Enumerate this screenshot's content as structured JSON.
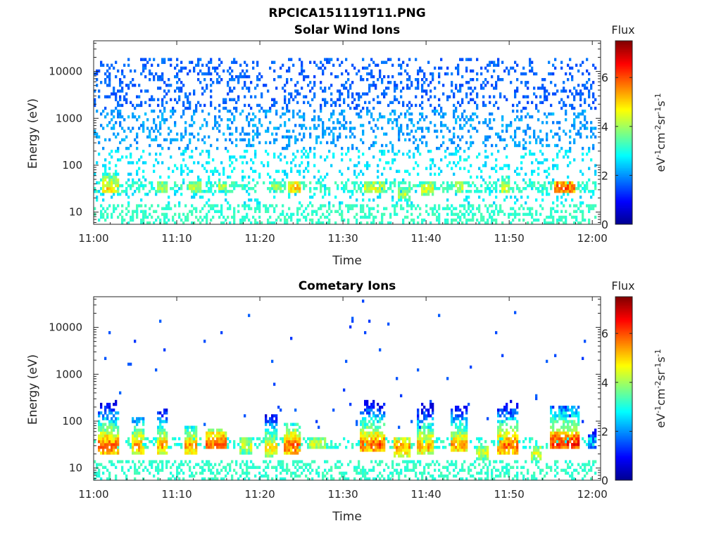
{
  "figure": {
    "title": "RPCICA151119T11.PNG"
  },
  "colormap": [
    "#00008f",
    "#0000ff",
    "#0080ff",
    "#00ffff",
    "#80ff80",
    "#ffff00",
    "#ff8000",
    "#ff0000",
    "#800000"
  ],
  "chart_data": [
    {
      "type": "heatmap",
      "title": "Solar Wind Ions",
      "xlabel": "Time",
      "ylabel": "Energy (eV)",
      "x_ticks": [
        "11:00",
        "11:10",
        "11:20",
        "11:30",
        "11:40",
        "11:50",
        "12:00"
      ],
      "y_ticks": [
        "10",
        "100",
        "1000",
        "10000"
      ],
      "y_scale": "log",
      "ylim": [
        5.5,
        45000
      ],
      "xlim_minutes": [
        0,
        61
      ],
      "colorbar": {
        "title": "Flux",
        "label": "eV-1cm-2sr-1s-1",
        "ticks": [
          "0",
          "2",
          "4",
          "6"
        ],
        "range": [
          0,
          7.5
        ]
      },
      "enhancement_bands": [
        {
          "t_start": 1.0,
          "t_end": 3.0,
          "e_low": 25,
          "e_high": 70,
          "peak": 5.5
        },
        {
          "t_start": 7.5,
          "t_end": 9.0,
          "e_low": 25,
          "e_high": 45,
          "peak": 4.8
        },
        {
          "t_start": 11.5,
          "t_end": 13.0,
          "e_low": 25,
          "e_high": 45,
          "peak": 4.8
        },
        {
          "t_start": 15.0,
          "t_end": 16.0,
          "e_low": 28,
          "e_high": 45,
          "peak": 4.6
        },
        {
          "t_start": 21.0,
          "t_end": 22.5,
          "e_low": 28,
          "e_high": 45,
          "peak": 4.5
        },
        {
          "t_start": 23.5,
          "t_end": 25.0,
          "e_low": 25,
          "e_high": 45,
          "peak": 5.6
        },
        {
          "t_start": 32.5,
          "t_end": 35.0,
          "e_low": 25,
          "e_high": 45,
          "peak": 5.0
        },
        {
          "t_start": 36.5,
          "t_end": 38.0,
          "e_low": 18,
          "e_high": 35,
          "peak": 4.8
        },
        {
          "t_start": 39.5,
          "t_end": 41.0,
          "e_low": 22,
          "e_high": 45,
          "peak": 5.0
        },
        {
          "t_start": 43.5,
          "t_end": 44.5,
          "e_low": 25,
          "e_high": 45,
          "peak": 4.8
        },
        {
          "t_start": 49.0,
          "t_end": 50.0,
          "e_low": 25,
          "e_high": 60,
          "peak": 5.0
        },
        {
          "t_start": 55.5,
          "t_end": 58.0,
          "e_low": 25,
          "e_high": 45,
          "peak": 6.5
        }
      ]
    },
    {
      "type": "heatmap",
      "title": "Cometary Ions",
      "xlabel": "Time",
      "ylabel": "Energy (eV)",
      "x_ticks": [
        "11:00",
        "11:10",
        "11:20",
        "11:30",
        "11:40",
        "11:50",
        "12:00"
      ],
      "y_ticks": [
        "10",
        "100",
        "1000",
        "10000"
      ],
      "y_scale": "log",
      "ylim": [
        5.5,
        45000
      ],
      "xlim_minutes": [
        0,
        61
      ],
      "colorbar": {
        "title": "Flux",
        "label": "eV-1cm-2sr-1s-1",
        "ticks": [
          "0",
          "2",
          "4",
          "6"
        ],
        "range": [
          0,
          7.5
        ]
      },
      "enhancement_bands": [
        {
          "t_start": 0.5,
          "t_end": 3.0,
          "e_low": 20,
          "e_high": 400,
          "peak": 6.5
        },
        {
          "t_start": 4.5,
          "t_end": 6.0,
          "e_low": 20,
          "e_high": 120,
          "peak": 6.0
        },
        {
          "t_start": 7.5,
          "t_end": 9.0,
          "e_low": 20,
          "e_high": 200,
          "peak": 6.0
        },
        {
          "t_start": 11.0,
          "t_end": 12.5,
          "e_low": 20,
          "e_high": 80,
          "peak": 6.0
        },
        {
          "t_start": 13.5,
          "t_end": 16.0,
          "e_low": 25,
          "e_high": 70,
          "peak": 6.5
        },
        {
          "t_start": 17.5,
          "t_end": 19.0,
          "e_low": 20,
          "e_high": 45,
          "peak": 5.0
        },
        {
          "t_start": 20.5,
          "t_end": 22.0,
          "e_low": 18,
          "e_high": 150,
          "peak": 5.5
        },
        {
          "t_start": 23.0,
          "t_end": 25.0,
          "e_low": 20,
          "e_high": 90,
          "peak": 6.5
        },
        {
          "t_start": 26.0,
          "t_end": 28.0,
          "e_low": 25,
          "e_high": 45,
          "peak": 5.0
        },
        {
          "t_start": 32.0,
          "t_end": 35.0,
          "e_low": 22,
          "e_high": 300,
          "peak": 6.5
        },
        {
          "t_start": 36.0,
          "t_end": 38.0,
          "e_low": 18,
          "e_high": 45,
          "peak": 6.0
        },
        {
          "t_start": 39.0,
          "t_end": 41.0,
          "e_low": 20,
          "e_high": 300,
          "peak": 6.0
        },
        {
          "t_start": 43.0,
          "t_end": 45.0,
          "e_low": 22,
          "e_high": 200,
          "peak": 6.0
        },
        {
          "t_start": 46.0,
          "t_end": 47.5,
          "e_low": 15,
          "e_high": 30,
          "peak": 5.0
        },
        {
          "t_start": 48.5,
          "t_end": 51.0,
          "e_low": 20,
          "e_high": 400,
          "peak": 6.5
        },
        {
          "t_start": 52.5,
          "t_end": 54.0,
          "e_low": 15,
          "e_high": 30,
          "peak": 5.0
        },
        {
          "t_start": 55.0,
          "t_end": 58.5,
          "e_low": 25,
          "e_high": 200,
          "peak": 7.0
        },
        {
          "t_start": 59.5,
          "t_end": 60.5,
          "e_low": 25,
          "e_high": 80,
          "peak": 3.0
        }
      ]
    }
  ]
}
